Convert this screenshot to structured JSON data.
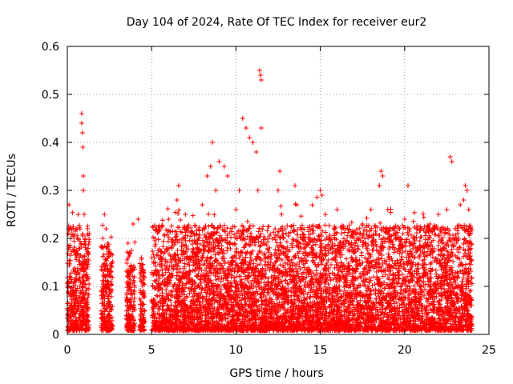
{
  "chart_data": {
    "type": "scatter",
    "title": "Day 104 of 2024, Rate Of TEC Index for receiver eur2",
    "xlabel": "GPS time / hours",
    "ylabel": "ROTI / TECUs",
    "xlim": [
      0,
      25
    ],
    "ylim": [
      0,
      0.6
    ],
    "x_ticks": [
      0,
      5,
      10,
      15,
      20,
      25
    ],
    "y_ticks": [
      0,
      0.1,
      0.2,
      0.3,
      0.4,
      0.5,
      0.6
    ],
    "x_tick_labels": [
      "0",
      "5",
      "10",
      "15",
      "20",
      "25"
    ],
    "y_tick_labels": [
      "0",
      "0.1",
      "0.2",
      "0.3",
      "0.4",
      "0.5",
      "0.6"
    ],
    "grid": true,
    "marker": "+",
    "color": "#ff0000",
    "series": [
      {
        "name": "ROTI",
        "note": "dense cloud of samples 0-24 h, bulk 0.01-0.25 TECU/s; notable outliers listed",
        "points": [
          [
            0.1,
            0.27
          ],
          [
            0.1,
            0.22
          ],
          [
            0.2,
            0.2
          ],
          [
            0.15,
            0.12
          ],
          [
            0.2,
            0.06
          ],
          [
            0.25,
            0.03
          ],
          [
            0.4,
            0.13
          ],
          [
            0.5,
            0.17
          ],
          [
            0.6,
            0.2
          ],
          [
            0.65,
            0.25
          ],
          [
            0.85,
            0.46
          ],
          [
            0.85,
            0.44
          ],
          [
            0.9,
            0.42
          ],
          [
            0.92,
            0.39
          ],
          [
            0.95,
            0.33
          ],
          [
            0.95,
            0.3
          ],
          [
            1.0,
            0.25
          ],
          [
            1.05,
            0.2
          ],
          [
            1.1,
            0.15
          ],
          [
            1.2,
            0.22
          ],
          [
            1.3,
            0.21
          ],
          [
            1.2,
            0.12
          ],
          [
            2.1,
            0.2
          ],
          [
            2.2,
            0.25
          ],
          [
            2.3,
            0.22
          ],
          [
            2.4,
            0.19
          ],
          [
            2.5,
            0.17
          ],
          [
            2.6,
            0.14
          ],
          [
            2.55,
            0.09
          ],
          [
            3.6,
            0.19
          ],
          [
            3.7,
            0.17
          ],
          [
            3.8,
            0.13
          ],
          [
            3.9,
            0.23
          ],
          [
            4.2,
            0.24
          ],
          [
            4.4,
            0.16
          ],
          [
            4.5,
            0.13
          ],
          [
            5.2,
            0.2
          ],
          [
            5.5,
            0.22
          ],
          [
            6.0,
            0.24
          ],
          [
            6.5,
            0.28
          ],
          [
            6.6,
            0.31
          ],
          [
            7.0,
            0.25
          ],
          [
            7.5,
            0.21
          ],
          [
            8.0,
            0.27
          ],
          [
            8.3,
            0.33
          ],
          [
            8.5,
            0.35
          ],
          [
            8.6,
            0.4
          ],
          [
            8.8,
            0.3
          ],
          [
            9.0,
            0.36
          ],
          [
            9.3,
            0.35
          ],
          [
            9.5,
            0.33
          ],
          [
            10.0,
            0.26
          ],
          [
            10.2,
            0.3
          ],
          [
            10.4,
            0.45
          ],
          [
            10.6,
            0.43
          ],
          [
            10.8,
            0.41
          ],
          [
            11.0,
            0.4
          ],
          [
            11.2,
            0.38
          ],
          [
            11.3,
            0.3
          ],
          [
            11.4,
            0.55
          ],
          [
            11.45,
            0.54
          ],
          [
            11.5,
            0.53
          ],
          [
            11.5,
            0.43
          ],
          [
            12.5,
            0.3
          ],
          [
            12.6,
            0.34
          ],
          [
            12.7,
            0.25
          ],
          [
            13.5,
            0.31
          ],
          [
            13.6,
            0.27
          ],
          [
            14.0,
            0.2
          ],
          [
            14.5,
            0.22
          ],
          [
            15.0,
            0.3
          ],
          [
            15.1,
            0.29
          ],
          [
            15.3,
            0.25
          ],
          [
            16.0,
            0.26
          ],
          [
            16.5,
            0.22
          ],
          [
            17.0,
            0.2
          ],
          [
            17.5,
            0.23
          ],
          [
            18.0,
            0.26
          ],
          [
            18.5,
            0.31
          ],
          [
            18.6,
            0.34
          ],
          [
            18.7,
            0.33
          ],
          [
            19.0,
            0.26
          ],
          [
            19.5,
            0.2
          ],
          [
            20.0,
            0.24
          ],
          [
            20.2,
            0.31
          ],
          [
            20.5,
            0.2
          ],
          [
            21.0,
            0.22
          ],
          [
            21.5,
            0.23
          ],
          [
            22.0,
            0.25
          ],
          [
            22.5,
            0.26
          ],
          [
            22.7,
            0.37
          ],
          [
            22.8,
            0.36
          ],
          [
            23.0,
            0.22
          ],
          [
            23.3,
            0.27
          ],
          [
            23.5,
            0.28
          ],
          [
            23.6,
            0.31
          ],
          [
            23.7,
            0.3
          ],
          [
            23.8,
            0.26
          ],
          [
            23.9,
            0.22
          ]
        ]
      }
    ]
  }
}
